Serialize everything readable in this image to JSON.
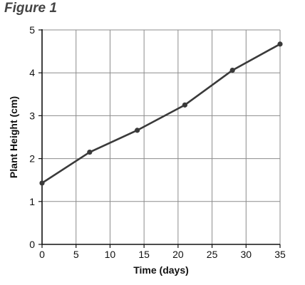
{
  "figure_label": "Figure 1",
  "chart_data": {
    "type": "line",
    "title": "",
    "xlabel": "Time (days)",
    "ylabel": "Plant Height (cm)",
    "xlim": [
      0,
      35
    ],
    "ylim": [
      0,
      5
    ],
    "xticks": [
      0,
      5,
      10,
      15,
      20,
      25,
      30,
      35
    ],
    "yticks": [
      0,
      1,
      2,
      3,
      4,
      5
    ],
    "grid": true,
    "legend": "none",
    "line_color": "#3a3a3a",
    "grid_color": "#8c8c8c",
    "series": [
      {
        "x": [
          0,
          7,
          14,
          21,
          28,
          35
        ],
        "y": [
          1.43,
          2.15,
          2.66,
          3.25,
          4.06,
          4.67
        ]
      }
    ]
  }
}
